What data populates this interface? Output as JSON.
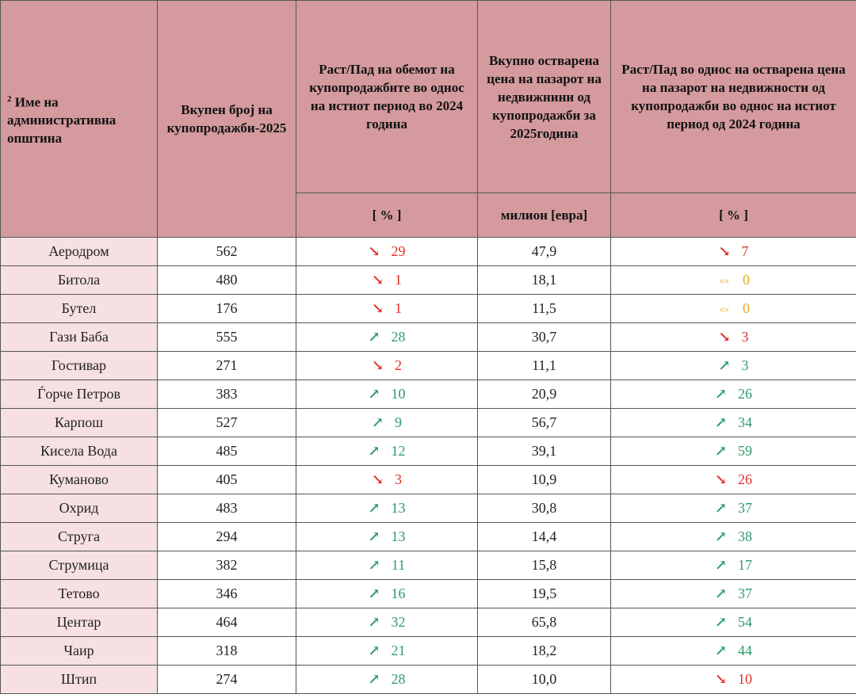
{
  "header": {
    "superscript": "2",
    "columns": [
      "Име на административна општина",
      "Вкупен број на купопродажби-2025",
      "Раст/Пад на обемот на купопродажбите во однос на истиот период во 2024 година",
      "Вкупно остварена цена на пазарот на недвижнини од купопродажби за 2025година",
      "Раст/Пад во однос на остварена цена на пазарот на недвижности  од купопродажби во однос на истиот период од 2024 година"
    ],
    "units": [
      "[ % ]",
      "милион [евра]",
      "[ % ]"
    ]
  },
  "rows": [
    {
      "name": "Аеродром",
      "count": 562,
      "change": {
        "arrow": "↘",
        "value": 29
      },
      "price": "47,9",
      "price_change": {
        "arrow": "↘",
        "value": 7
      }
    },
    {
      "name": "Битола",
      "count": 480,
      "change": {
        "arrow": "↘",
        "value": 1
      },
      "price": "18,1",
      "price_change": {
        "arrow": "⇔",
        "value": 0
      }
    },
    {
      "name": "Бутел",
      "count": 176,
      "change": {
        "arrow": "↘",
        "value": 1
      },
      "price": "11,5",
      "price_change": {
        "arrow": "⇔",
        "value": 0
      }
    },
    {
      "name": "Гази Баба",
      "count": 555,
      "change": {
        "arrow": "↗",
        "value": 28
      },
      "price": "30,7",
      "price_change": {
        "arrow": "↘",
        "value": 3
      }
    },
    {
      "name": "Гостивар",
      "count": 271,
      "change": {
        "arrow": "↘",
        "value": 2
      },
      "price": "11,1",
      "price_change": {
        "arrow": "↗",
        "value": 3
      }
    },
    {
      "name": "Ѓорче Петров",
      "count": 383,
      "change": {
        "arrow": "↗",
        "value": 10
      },
      "price": "20,9",
      "price_change": {
        "arrow": "↗",
        "value": 26
      }
    },
    {
      "name": "Карпош",
      "count": 527,
      "change": {
        "arrow": "↗",
        "value": 9
      },
      "price": "56,7",
      "price_change": {
        "arrow": "↗",
        "value": 34
      }
    },
    {
      "name": "Кисела Вода",
      "count": 485,
      "change": {
        "arrow": "↗",
        "value": 12
      },
      "price": "39,1",
      "price_change": {
        "arrow": "↗",
        "value": 59
      }
    },
    {
      "name": "Куманово",
      "count": 405,
      "change": {
        "arrow": "↘",
        "value": 3
      },
      "price": "10,9",
      "price_change": {
        "arrow": "↘",
        "value": 26
      }
    },
    {
      "name": "Охрид",
      "count": 483,
      "change": {
        "arrow": "↗",
        "value": 13
      },
      "price": "30,8",
      "price_change": {
        "arrow": "↗",
        "value": 37
      }
    },
    {
      "name": "Струга",
      "count": 294,
      "change": {
        "arrow": "↗",
        "value": 13
      },
      "price": "14,4",
      "price_change": {
        "arrow": "↗",
        "value": 38
      }
    },
    {
      "name": "Струмица",
      "count": 382,
      "change": {
        "arrow": "↗",
        "value": 11
      },
      "price": "15,8",
      "price_change": {
        "arrow": "↗",
        "value": 17
      }
    },
    {
      "name": "Тетово",
      "count": 346,
      "change": {
        "arrow": "↗",
        "value": 16
      },
      "price": "19,5",
      "price_change": {
        "arrow": "↗",
        "value": 37
      }
    },
    {
      "name": "Центар",
      "count": 464,
      "change": {
        "arrow": "↗",
        "value": 32
      },
      "price": "65,8",
      "price_change": {
        "arrow": "↗",
        "value": 54
      }
    },
    {
      "name": "Чаир",
      "count": 318,
      "change": {
        "arrow": "↗",
        "value": 21
      },
      "price": "18,2",
      "price_change": {
        "arrow": "↗",
        "value": 44
      }
    },
    {
      "name": "Штип",
      "count": 274,
      "change": {
        "arrow": "↗",
        "value": 28
      },
      "price": "10,0",
      "price_change": {
        "arrow": "↘",
        "value": 10
      }
    }
  ]
}
